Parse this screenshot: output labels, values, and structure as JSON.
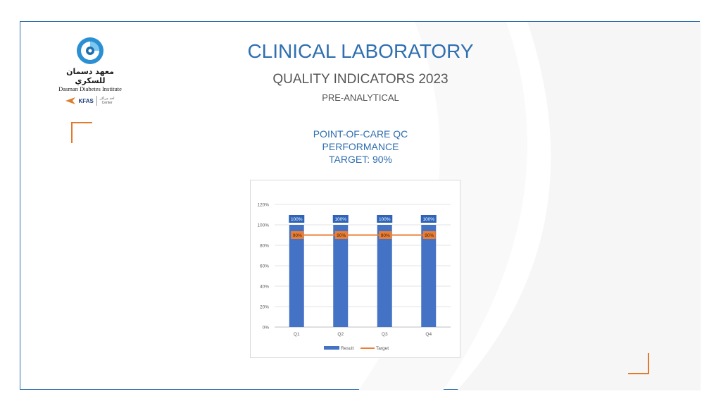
{
  "slide": {
    "title": "CLINICAL LABORATORY",
    "subtitle": "QUALITY INDICATORS 2023",
    "section": "PRE-ANALYTICAL"
  },
  "logo": {
    "arabic_name": "معهد دسمان للسكري",
    "english_name": "Dasman Diabetes Institute",
    "partner_name": "KFAS",
    "center_arabic": "احد مراكز",
    "center_english": "Center"
  },
  "chart_heading": {
    "line1": "POINT-OF-CARE QC",
    "line2": "PERFORMANCE",
    "line3": "TARGET: 90%"
  },
  "colors": {
    "accent": "#2f6fb0",
    "bar": "#4472c4",
    "target": "#ed7d31",
    "corner": "#e07b2e"
  },
  "chart_data": {
    "type": "bar",
    "categories": [
      "Q1",
      "Q2",
      "Q3",
      "Q4"
    ],
    "series": [
      {
        "name": "Result",
        "type": "bar",
        "values": [
          100,
          100,
          100,
          100
        ],
        "labels": [
          "100%",
          "100%",
          "100%",
          "100%"
        ]
      },
      {
        "name": "Target",
        "type": "line",
        "values": [
          90,
          90,
          90,
          90
        ],
        "labels": [
          "90%",
          "90%",
          "90%",
          "90%"
        ]
      }
    ],
    "yticks": [
      "0%",
      "20%",
      "40%",
      "60%",
      "80%",
      "100%",
      "120%"
    ],
    "ylim": [
      0,
      120
    ],
    "grid": true,
    "legend": "bottom"
  }
}
